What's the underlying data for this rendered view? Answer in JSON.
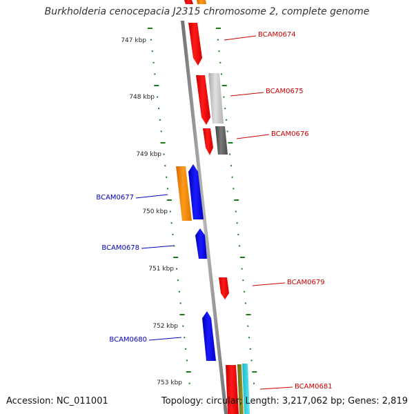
{
  "title": "Burkholderia cenocepacia J2315 chromosome 2, complete genome",
  "footer": {
    "accession": "Accession: NC_011001",
    "summary": "Topology: circular; Length: 3,217,062 bp; Genes: 2,819"
  },
  "scale_labels": [
    "747 kbp",
    "748 kbp",
    "749 kbp",
    "750 kbp",
    "751 kbp",
    "752 kbp",
    "753 kbp"
  ],
  "gene_labels": {
    "forward": [
      "BCAM0674",
      "BCAM0675",
      "BCAM0676",
      "BCAM0679",
      "BCAM0681"
    ],
    "reverse": [
      "BCAM0677",
      "BCAM0678",
      "BCAM0680"
    ]
  },
  "colors": {
    "forward_label": "#cc0000",
    "reverse_label": "#0000bb",
    "backbone": "#888888",
    "tick": "#1a7a1a"
  }
}
